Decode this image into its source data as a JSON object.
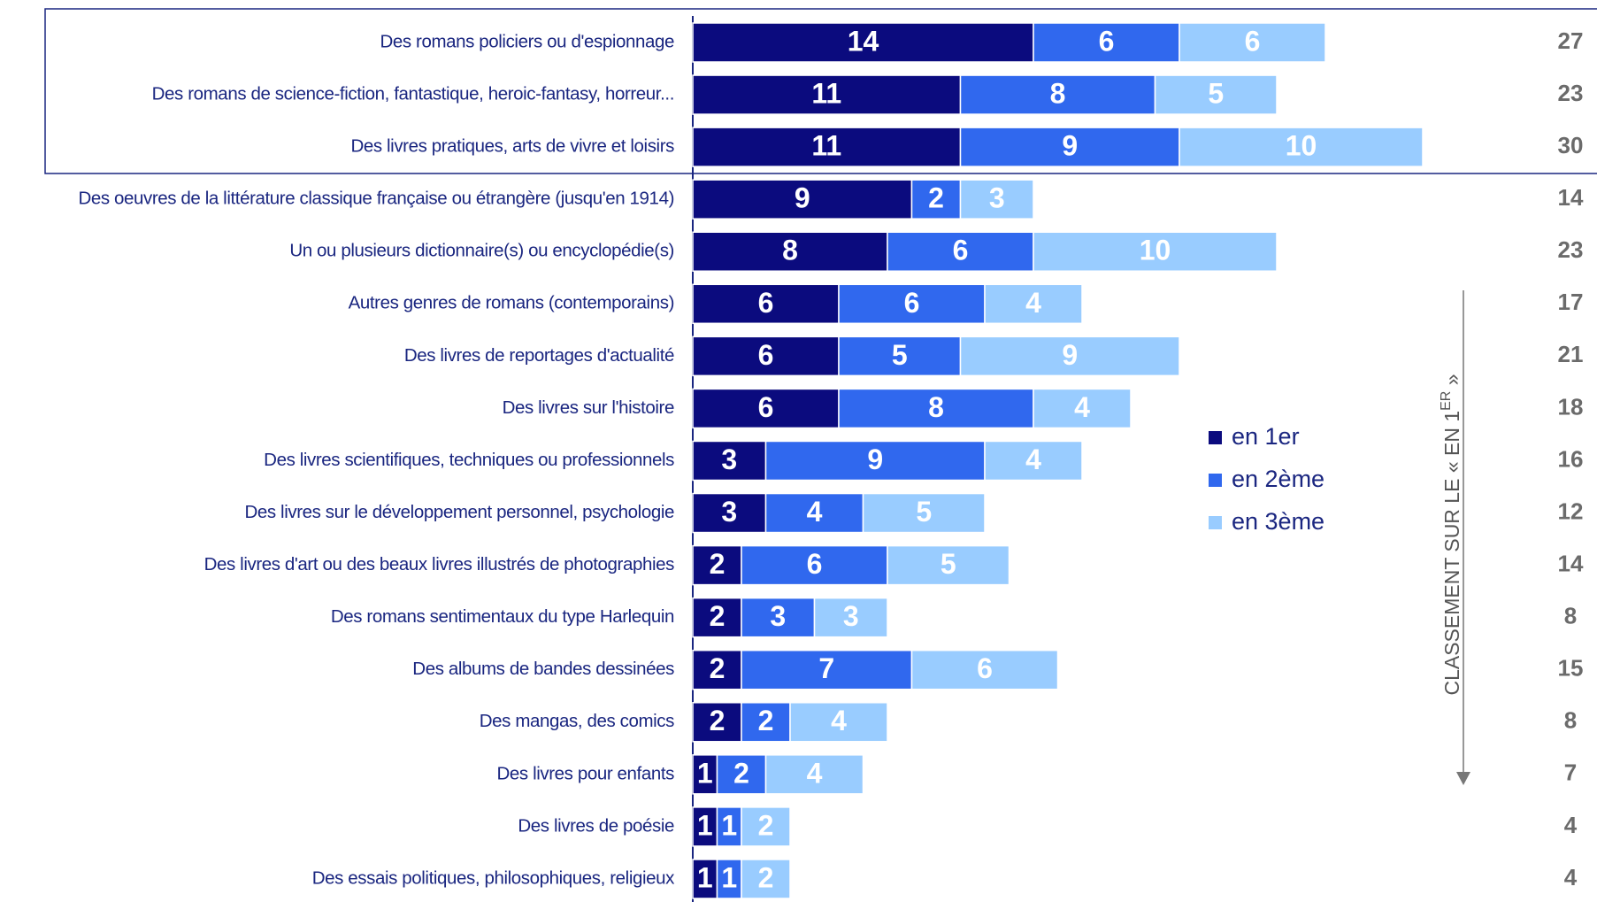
{
  "chart_data": {
    "type": "stacked-bar-horizontal",
    "categories": [
      "Des romans policiers ou d'espionnage",
      "Des romans de science-fiction, fantastique, heroic-fantasy, horreur...",
      "Des livres pratiques, arts de vivre et loisirs",
      "Des oeuvres de la littérature classique française ou étrangère (jusqu'en 1914)",
      "Un ou plusieurs dictionnaire(s) ou encyclopédie(s)",
      "Autres genres de romans (contemporains)",
      "Des livres de reportages d'actualité",
      "Des livres sur l'histoire",
      "Des livres scientifiques, techniques ou professionnels",
      "Des livres sur le développement personnel, psychologie",
      "Des livres d'art ou des beaux livres illustrés de photographies",
      "Des romans sentimentaux du type Harlequin",
      "Des albums de bandes dessinées",
      "Des mangas, des comics",
      "Des livres pour enfants",
      "Des livres de poésie",
      "Des essais politiques, philosophiques, religieux"
    ],
    "series": [
      {
        "name": "en 1er",
        "color": "#0b0b7e",
        "values": [
          14,
          11,
          11,
          9,
          8,
          6,
          6,
          6,
          3,
          3,
          2,
          2,
          2,
          2,
          1,
          1,
          1
        ]
      },
      {
        "name": "en 2ème",
        "color": "#3068ee",
        "values": [
          6,
          8,
          9,
          2,
          6,
          6,
          5,
          8,
          9,
          4,
          6,
          3,
          7,
          2,
          2,
          1,
          1
        ]
      },
      {
        "name": "en 3ème",
        "color": "#99ccff",
        "values": [
          6,
          5,
          10,
          3,
          10,
          4,
          9,
          4,
          4,
          5,
          5,
          3,
          6,
          4,
          4,
          2,
          2
        ]
      }
    ],
    "totals": [
      27,
      23,
      30,
      14,
      23,
      17,
      21,
      18,
      16,
      12,
      14,
      8,
      15,
      8,
      7,
      4,
      4
    ],
    "annotation": {
      "text": "CLASSEMENT SUR LE « EN 1",
      "superscript": "ER",
      "end": " »"
    }
  }
}
